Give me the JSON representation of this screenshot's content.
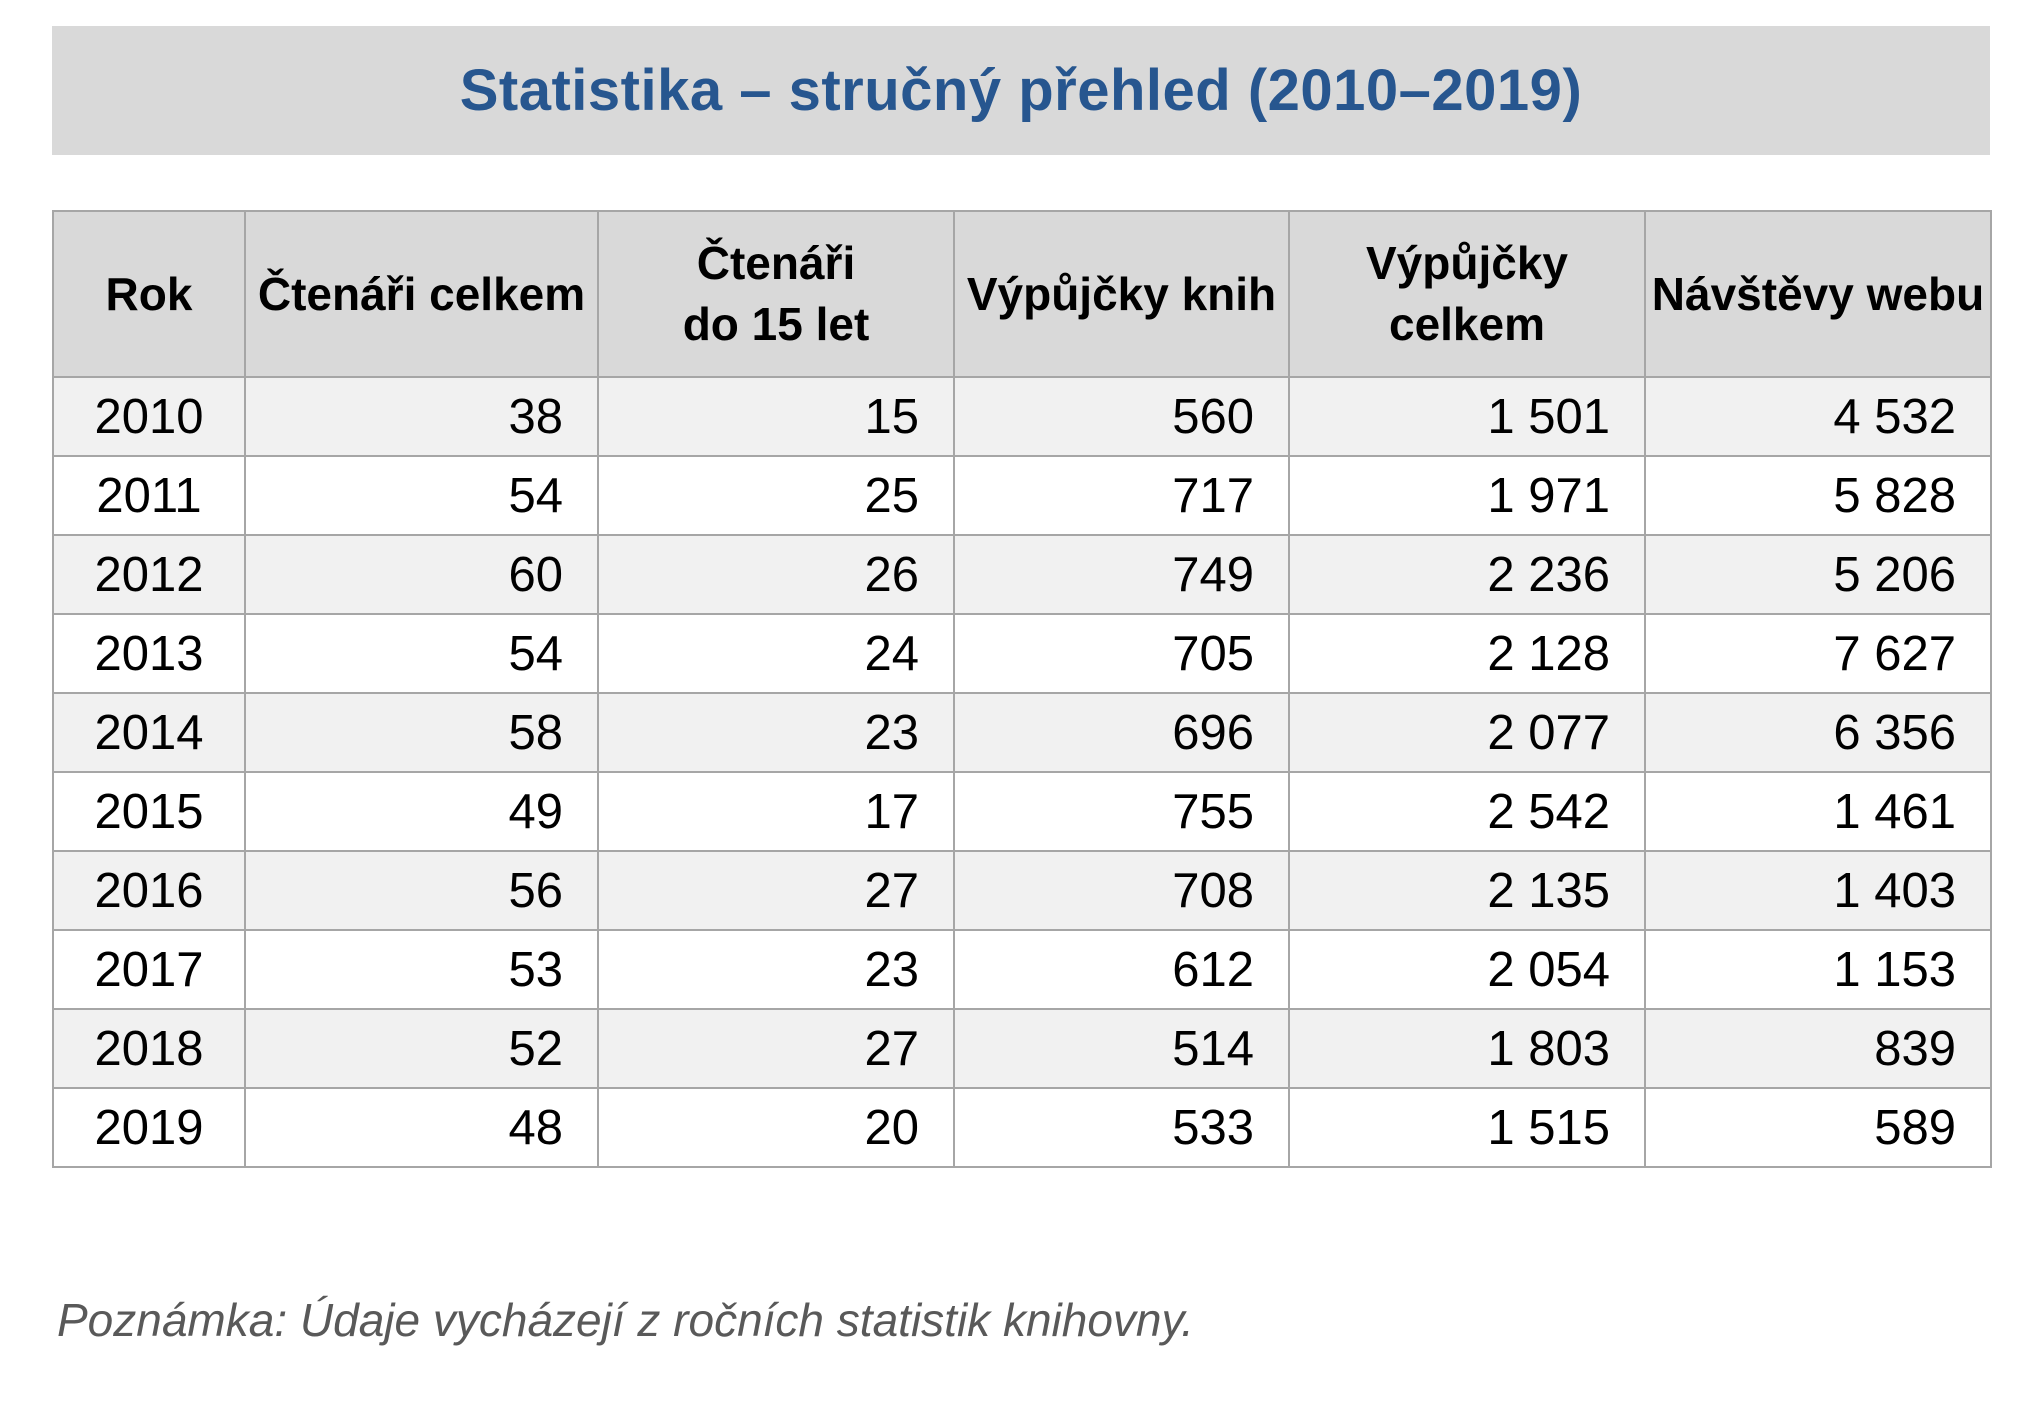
{
  "title": "Statistika – stručný přehled (2010–2019)",
  "note": "Poznámka: Údaje vycházejí z ročních statistik knihovny.",
  "colors": {
    "title_text": "#27568f",
    "title_bar_bg": "#d9d9d9",
    "header_bg": "#d9d9d9",
    "stripe_row_bg": "#f1f1f1",
    "table_border": "#a6a6a6",
    "note_text": "#595959"
  },
  "table": {
    "columns": [
      {
        "key": "rok",
        "label": "Rok"
      },
      {
        "key": "ctenari-celkem",
        "label": "Čtenáři celkem"
      },
      {
        "key": "ctenari-do-15",
        "label": "Čtenáři\ndo 15 let"
      },
      {
        "key": "vypujcky-knih",
        "label": "Výpůjčky knih"
      },
      {
        "key": "vypujcky-celkem",
        "label": "Výpůjčky\ncelkem"
      },
      {
        "key": "navstevy-webu",
        "label": "Návštěvy webu"
      }
    ],
    "rows": [
      [
        "2010",
        "38",
        "15",
        "560",
        "1 501",
        "4 532"
      ],
      [
        "2011",
        "54",
        "25",
        "717",
        "1 971",
        "5 828"
      ],
      [
        "2012",
        "60",
        "26",
        "749",
        "2 236",
        "5 206"
      ],
      [
        "2013",
        "54",
        "24",
        "705",
        "2 128",
        "7 627"
      ],
      [
        "2014",
        "58",
        "23",
        "696",
        "2 077",
        "6 356"
      ],
      [
        "2015",
        "49",
        "17",
        "755",
        "2 542",
        "1 461"
      ],
      [
        "2016",
        "56",
        "27",
        "708",
        "2 135",
        "1 403"
      ],
      [
        "2017",
        "53",
        "23",
        "612",
        "2 054",
        "1 153"
      ],
      [
        "2018",
        "52",
        "27",
        "514",
        "1 803",
        "839"
      ],
      [
        "2019",
        "48",
        "20",
        "533",
        "1 515",
        "589"
      ]
    ]
  }
}
